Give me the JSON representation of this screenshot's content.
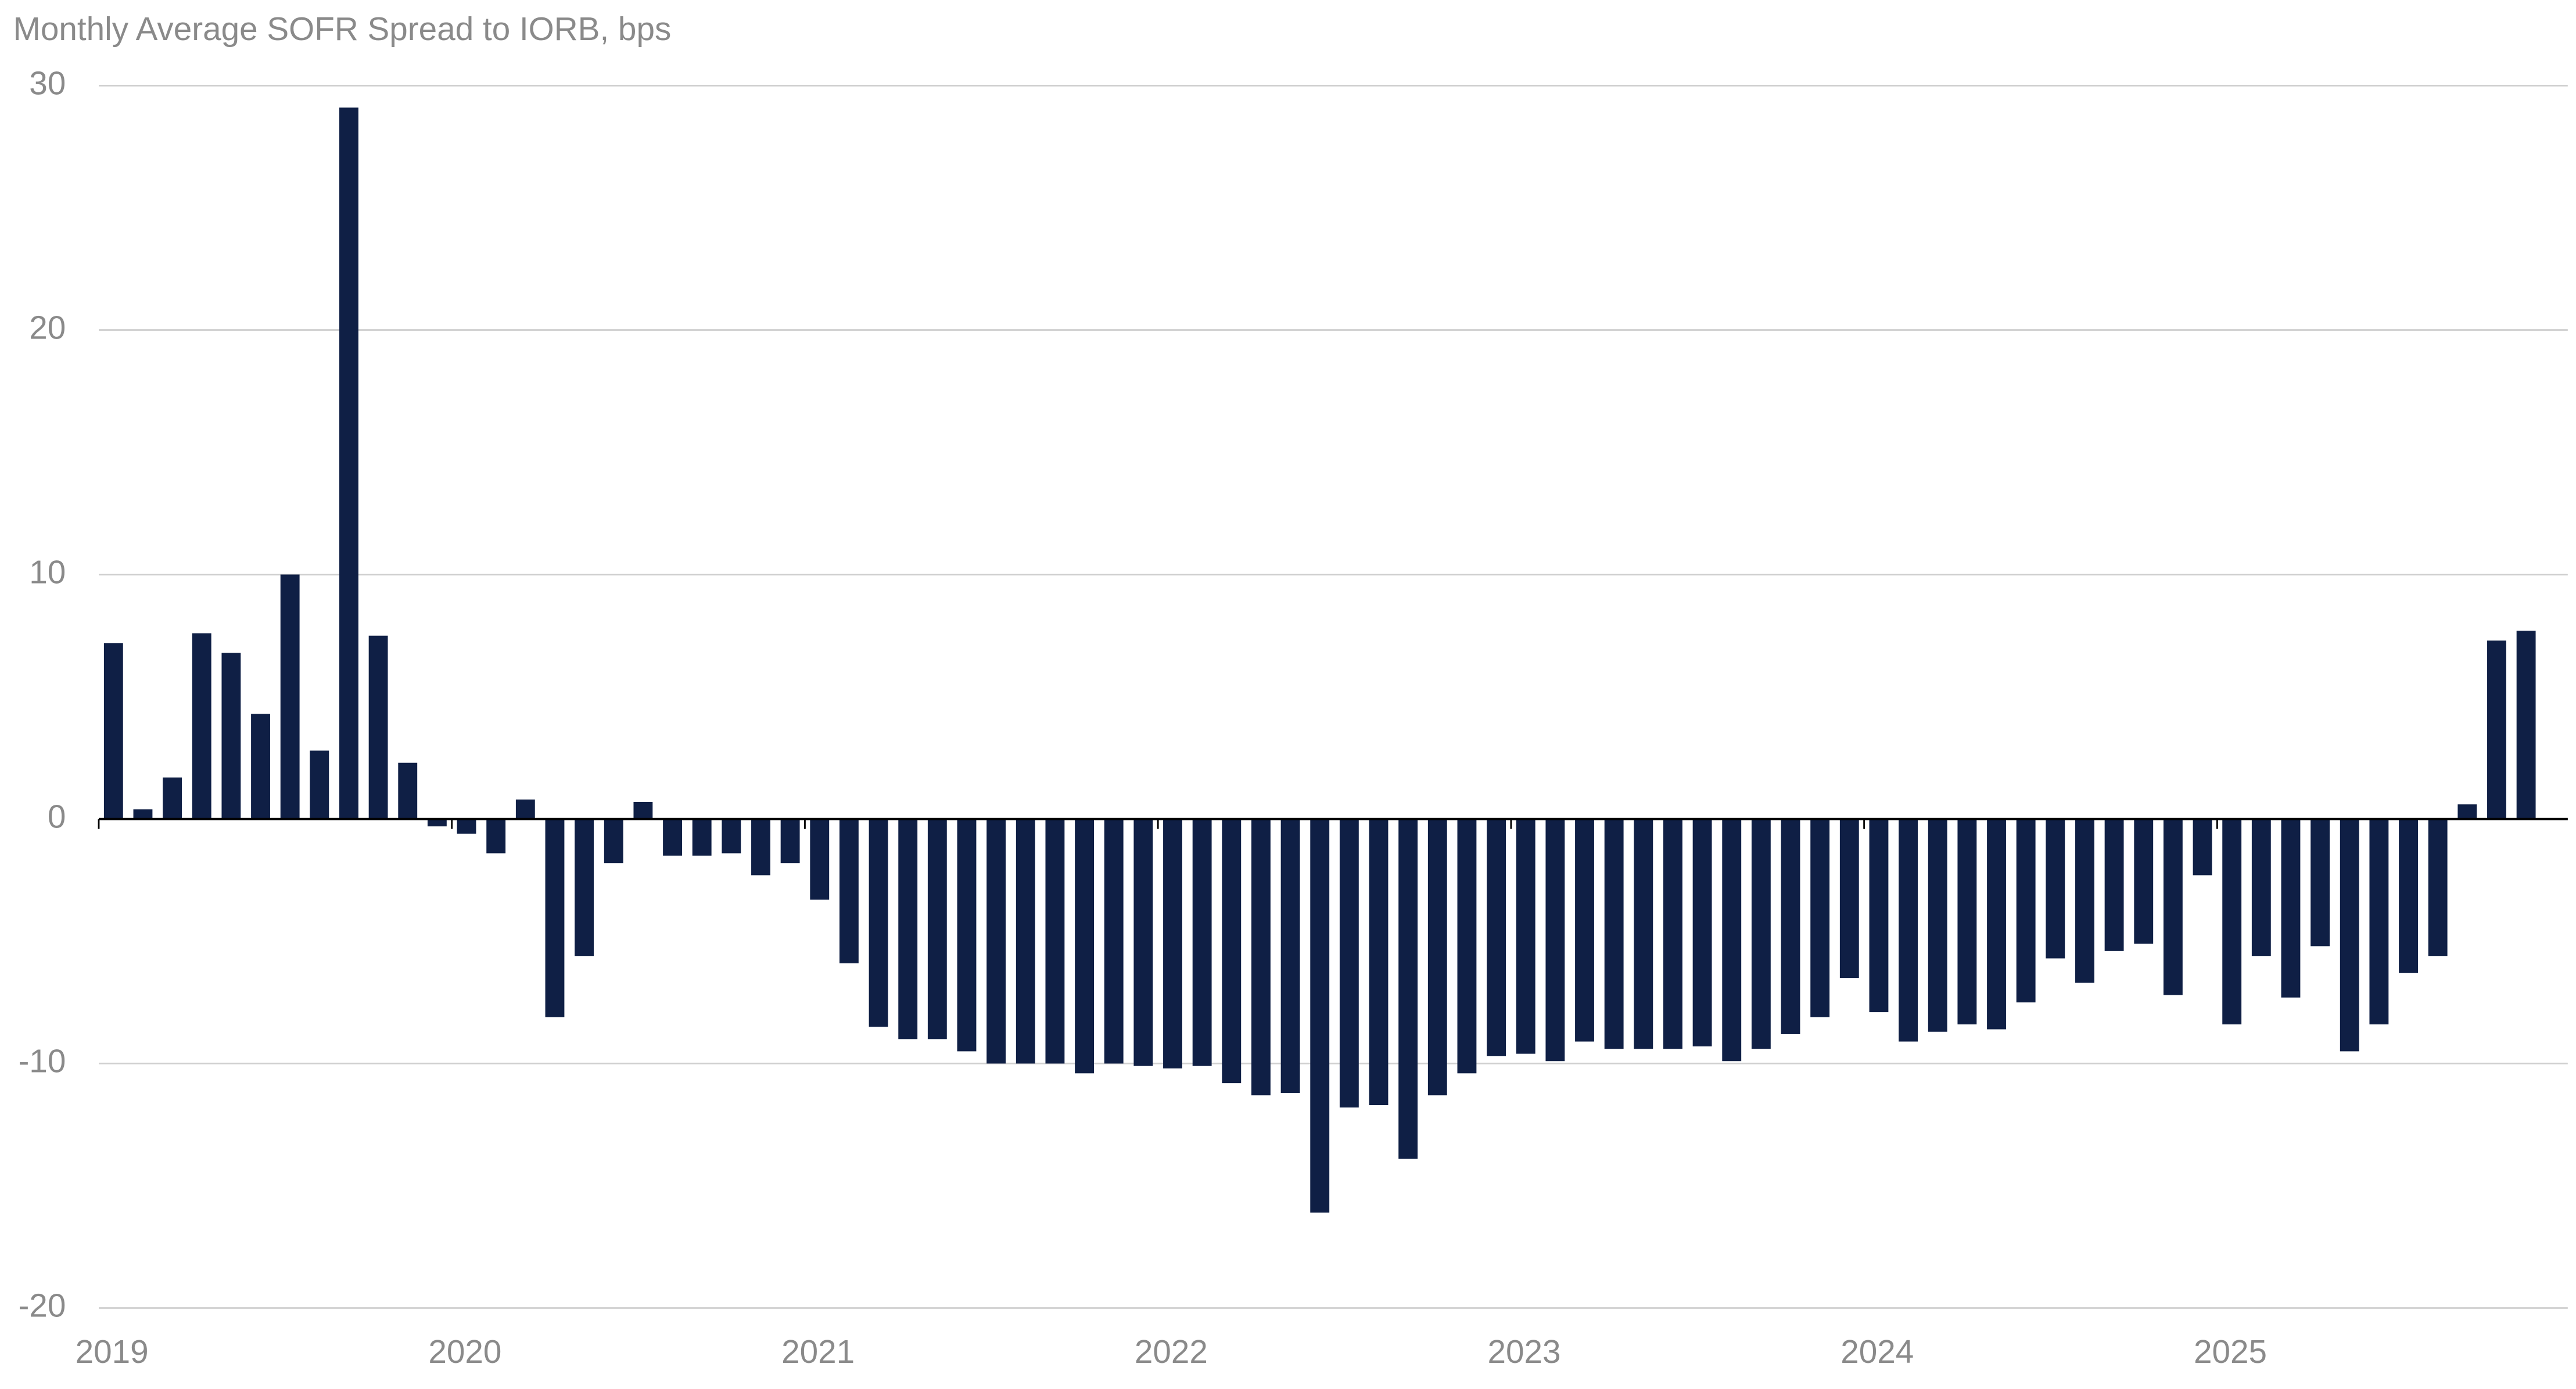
{
  "chart_data": {
    "type": "bar",
    "title": "Monthly Average SOFR Spread to IORB, bps",
    "categories": [
      "2019",
      null,
      null,
      null,
      null,
      null,
      null,
      null,
      null,
      null,
      null,
      null,
      "2020",
      null,
      null,
      null,
      null,
      null,
      null,
      null,
      null,
      null,
      null,
      null,
      "2021",
      null,
      null,
      null,
      null,
      null,
      null,
      null,
      null,
      null,
      null,
      null,
      "2022",
      null,
      null,
      null,
      null,
      null,
      null,
      null,
      null,
      null,
      null,
      null,
      "2023",
      null,
      null,
      null,
      null,
      null,
      null,
      null,
      null,
      null,
      null,
      null,
      "2024",
      null,
      null,
      null,
      null,
      null,
      null,
      null,
      null,
      null,
      null,
      null,
      "2025",
      null,
      null,
      null,
      null,
      null,
      null,
      null,
      null,
      null,
      null
    ],
    "values": [
      7.2,
      0.4,
      1.7,
      7.6,
      6.8,
      4.3,
      10.0,
      2.8,
      29.1,
      7.5,
      2.3,
      -0.3,
      -0.6,
      -1.4,
      0.8,
      -8.1,
      -5.6,
      -1.8,
      0.7,
      -1.5,
      -1.5,
      -1.4,
      -2.3,
      -1.8,
      -3.3,
      -5.9,
      -8.5,
      -9.0,
      -9.0,
      -9.5,
      -10.0,
      -10.0,
      -10.0,
      -10.4,
      -10.0,
      -10.1,
      -10.2,
      -10.1,
      -10.8,
      -11.3,
      -11.2,
      -16.1,
      -11.8,
      -11.7,
      -13.9,
      -11.3,
      -10.4,
      -9.7,
      -9.6,
      -9.9,
      -9.1,
      -9.4,
      -9.4,
      -9.4,
      -9.3,
      -9.9,
      -9.4,
      -8.8,
      -8.1,
      -6.5,
      -7.9,
      -9.1,
      -8.7,
      -8.4,
      -8.6,
      -7.5,
      -5.7,
      -6.7,
      -5.4,
      -5.1,
      -7.2,
      -2.3,
      -8.4,
      -5.6,
      -7.3,
      -5.2,
      -9.5,
      -8.4,
      -6.3,
      -5.6,
      0.6,
      7.3,
      7.7
    ],
    "color": "#0f1f45",
    "ylim": [
      -20,
      30
    ],
    "yticks": [
      -20,
      -10,
      0,
      10,
      20,
      30
    ],
    "grid": true
  }
}
